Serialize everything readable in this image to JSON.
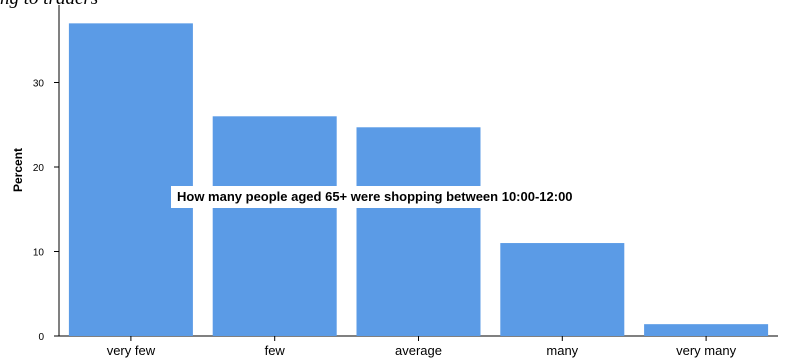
{
  "header": {
    "cropped_text": "ng to traders"
  },
  "overlay": {
    "text": "How many people aged 65+ were shopping between 10:00-12:00"
  },
  "chart_data": {
    "type": "bar",
    "categories": [
      "very few",
      "few",
      "average",
      "many",
      "very many"
    ],
    "values": [
      37.0,
      26.0,
      24.7,
      11.0,
      1.4
    ],
    "ylabel": "Percent",
    "xlabel": "",
    "yticks": [
      0,
      10,
      20,
      30
    ],
    "ylim": [
      0,
      38.8
    ],
    "grid": false,
    "bar_color": "#5b9be6"
  }
}
